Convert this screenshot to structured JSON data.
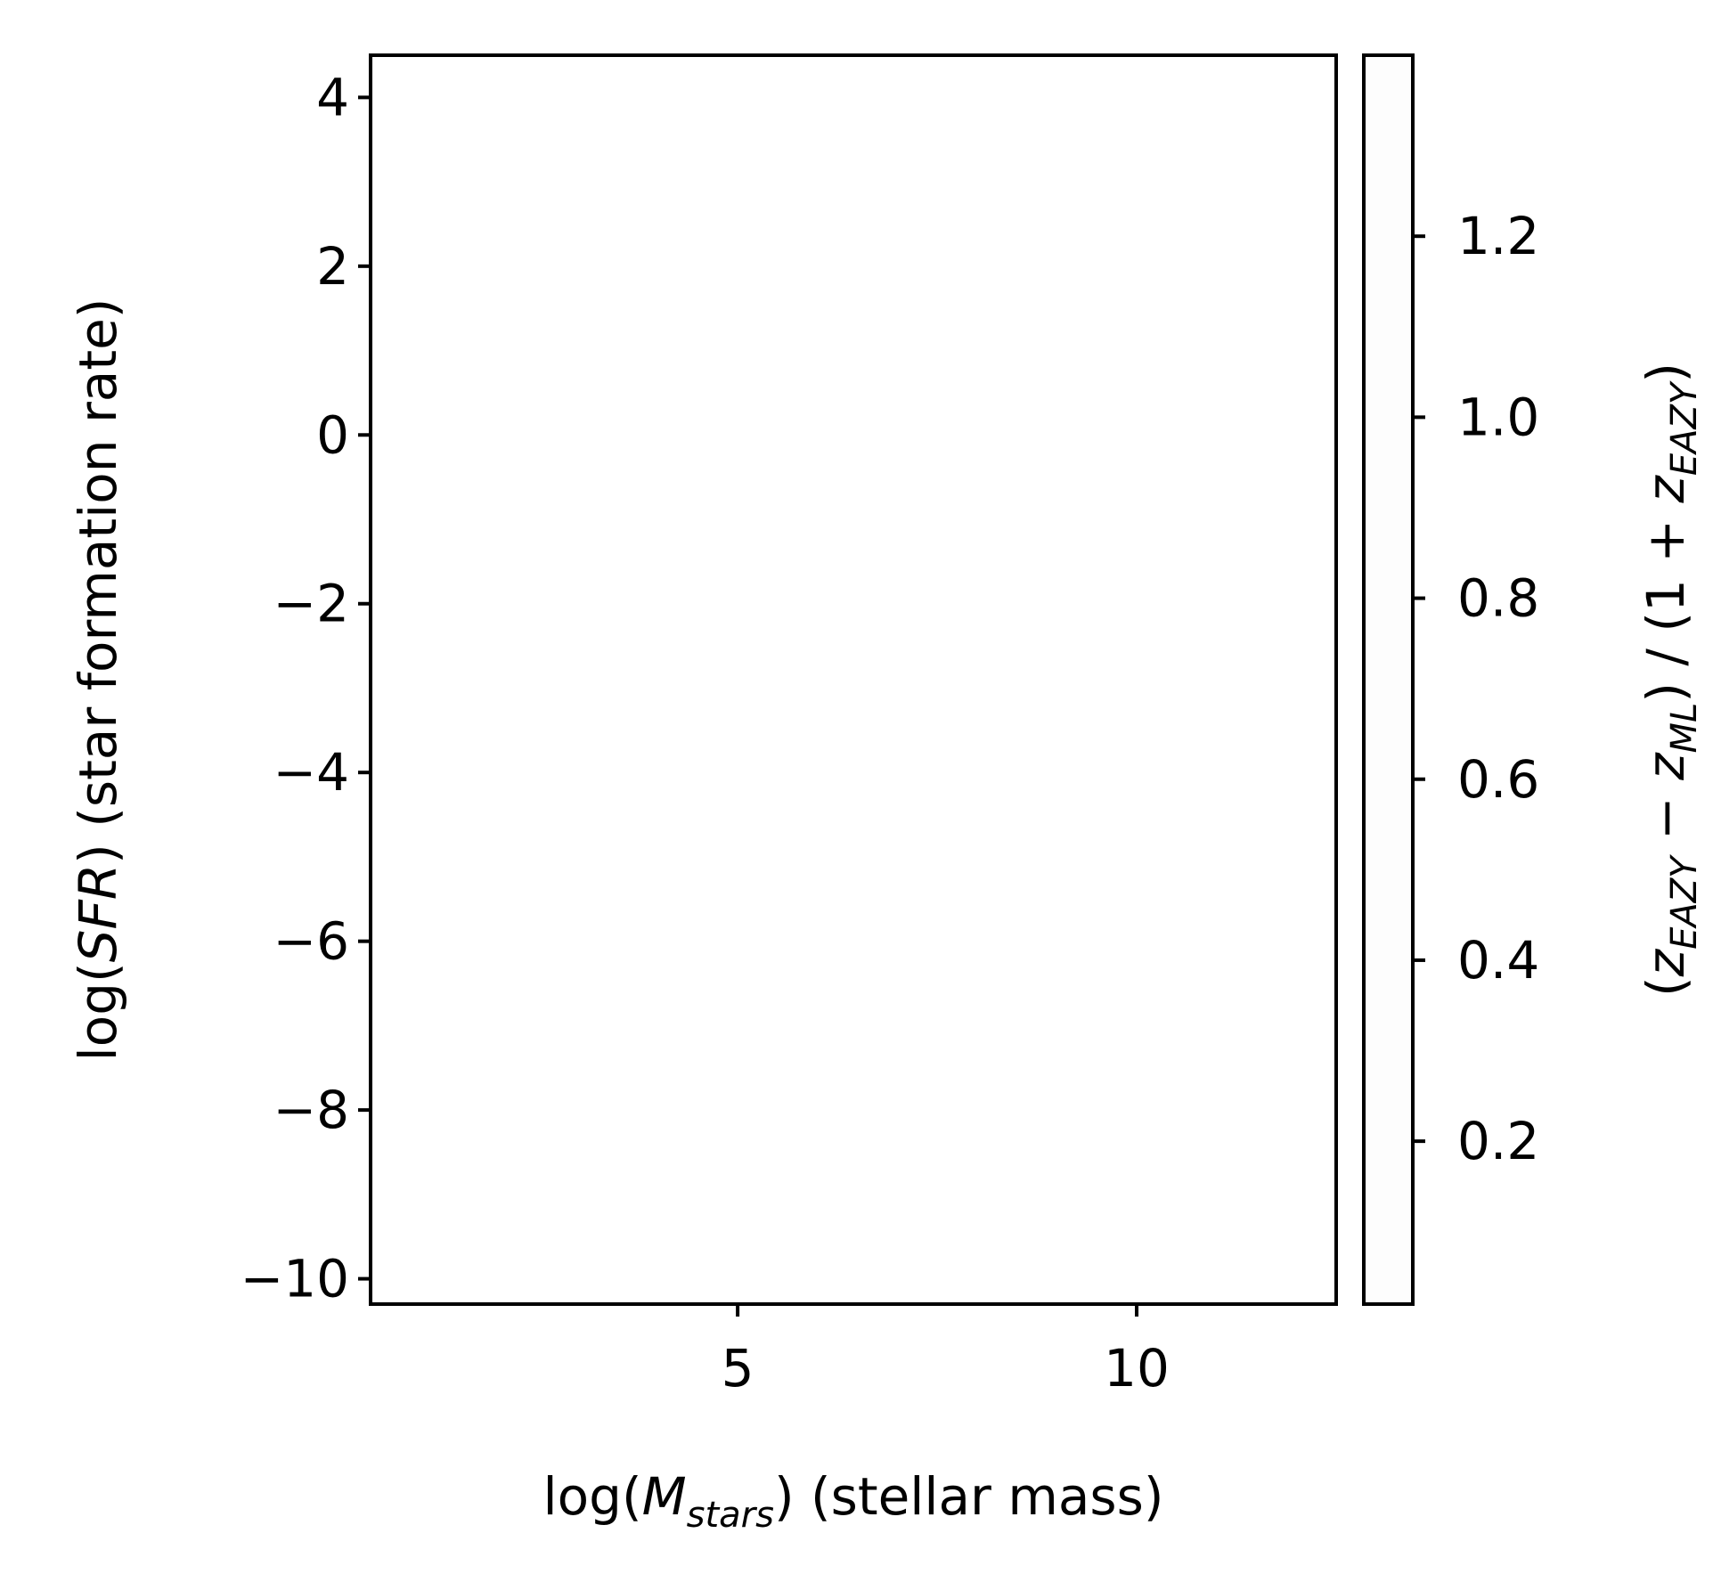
{
  "chart_data": {
    "type": "scatter",
    "title": "",
    "xlabel_parts": {
      "pre": "log(",
      "italic": "M",
      "sub": "stars",
      "post": ") (stellar mass)"
    },
    "ylabel_parts": {
      "pre": "log(",
      "italic": "SFR",
      "post": ") (star formation rate)"
    },
    "xlim": [
      0.4,
      12.5
    ],
    "ylim": [
      -10.3,
      4.5
    ],
    "xticks": [
      5,
      10
    ],
    "xtick_labels": [
      "5",
      "10"
    ],
    "yticks": [
      4,
      2,
      0,
      -2,
      -4,
      -6,
      -8,
      -10
    ],
    "ytick_labels": [
      "4",
      "2",
      "0",
      "−2",
      "−4",
      "−6",
      "−8",
      "−10"
    ],
    "series": [],
    "colorbar": {
      "label_parts": {
        "open": "(",
        "z1": "z",
        "s1": "EAZY",
        "minus": " − ",
        "z2": "z",
        "s2": "ML",
        "mid": ") / (1 + ",
        "z3": "z",
        "s3": "EAZY",
        "close": ")"
      },
      "range": [
        0.02,
        1.4
      ],
      "ticks": [
        1.2,
        1.0,
        0.8,
        0.6,
        0.4,
        0.2
      ],
      "tick_labels": [
        "1.2",
        "1.0",
        "0.8",
        "0.6",
        "0.4",
        "0.2"
      ]
    },
    "grid": false,
    "legend": "none"
  }
}
